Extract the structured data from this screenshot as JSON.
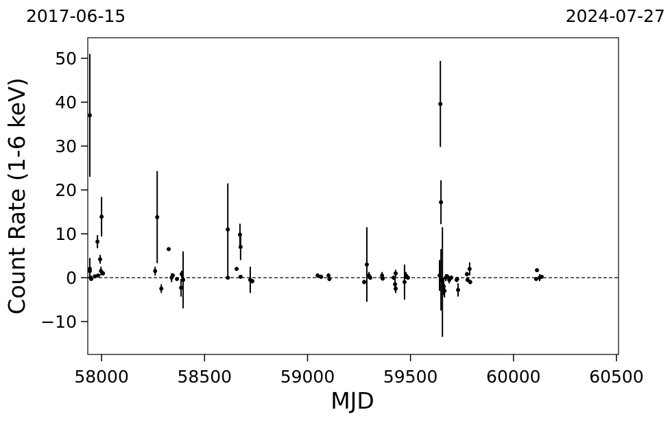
{
  "chart_data": {
    "type": "errorbar",
    "top_left_label": "2017-06-15",
    "top_right_label": "2024-07-27",
    "x_label": "MJD",
    "y_label": "Count Rate (1-6 keV)",
    "xlim": [
      57933,
      60510
    ],
    "ylim": [
      -17.5,
      54.7
    ],
    "xticks": [
      58000,
      58500,
      59000,
      59500,
      60000,
      60500
    ],
    "yticks": [
      {
        "value": -10,
        "label": "−10"
      },
      0,
      10,
      20,
      30,
      40,
      50
    ],
    "hline": 0,
    "color": "#000000",
    "x": [
      57943,
      57943,
      57943,
      57947,
      57950,
      57967,
      57980,
      57983,
      57993,
      57997,
      58000,
      58007,
      58260,
      58270,
      58290,
      58326,
      58340,
      58346,
      58366,
      58386,
      58389,
      58396,
      58613,
      58613,
      58656,
      58672,
      58675,
      58675,
      58722,
      58732,
      59049,
      59066,
      59102,
      59106,
      59275,
      59288,
      59298,
      59305,
      59362,
      59365,
      59418,
      59425,
      59428,
      59428,
      59471,
      59478,
      59488,
      59645,
      59648,
      59641,
      59648,
      59655,
      59661,
      59665,
      59671,
      59678,
      59688,
      59698,
      59724,
      59731,
      59727,
      59774,
      59777,
      59787,
      59790,
      60114,
      60110,
      60127,
      60137
    ],
    "y": [
      37,
      2,
      1.5,
      0,
      -0.3,
      0.3,
      8.2,
      0.5,
      4.2,
      1.5,
      13.9,
      1.0,
      1.5,
      13.8,
      -2.5,
      6.5,
      0,
      0.5,
      -0.3,
      -2.3,
      0.8,
      -0.5,
      11,
      0,
      2.0,
      9.8,
      7,
      0.2,
      -0.5,
      -0.8,
      0.5,
      0.2,
      0.5,
      -0.3,
      -1,
      3,
      0.5,
      0,
      0.5,
      -0.2,
      0,
      -1.5,
      1,
      -2.5,
      -1,
      0.5,
      0,
      39.6,
      17.2,
      0.5,
      -0.5,
      -1,
      -2,
      -3,
      0,
      0.3,
      -0.5,
      0,
      -0.5,
      -2.8,
      -0.3,
      0.8,
      -0.5,
      2,
      -1,
      1.7,
      -0.3,
      0,
      0.2
    ],
    "yerr": [
      14,
      2.5,
      1,
      0.5,
      0.3,
      0.3,
      1.5,
      0.3,
      1,
      1,
      4.5,
      0.5,
      1,
      10.5,
      1,
      0.3,
      1,
      0.5,
      0.3,
      2,
      0.8,
      6.5,
      10.5,
      0.3,
      0.3,
      2.5,
      3,
      0.3,
      3,
      0.5,
      0.5,
      0.5,
      0.5,
      0.5,
      0.5,
      8.5,
      0.8,
      0.5,
      0.8,
      0.5,
      0.5,
      1.5,
      0.8,
      1,
      4,
      0.8,
      0.5,
      9.8,
      5,
      3.5,
      7,
      12.5,
      2,
      1.5,
      0.8,
      0.5,
      0.8,
      0.5,
      0.5,
      1.5,
      0.5,
      0.5,
      0.5,
      1.5,
      0.5,
      0.3,
      0.3,
      0.8,
      0.3
    ]
  }
}
